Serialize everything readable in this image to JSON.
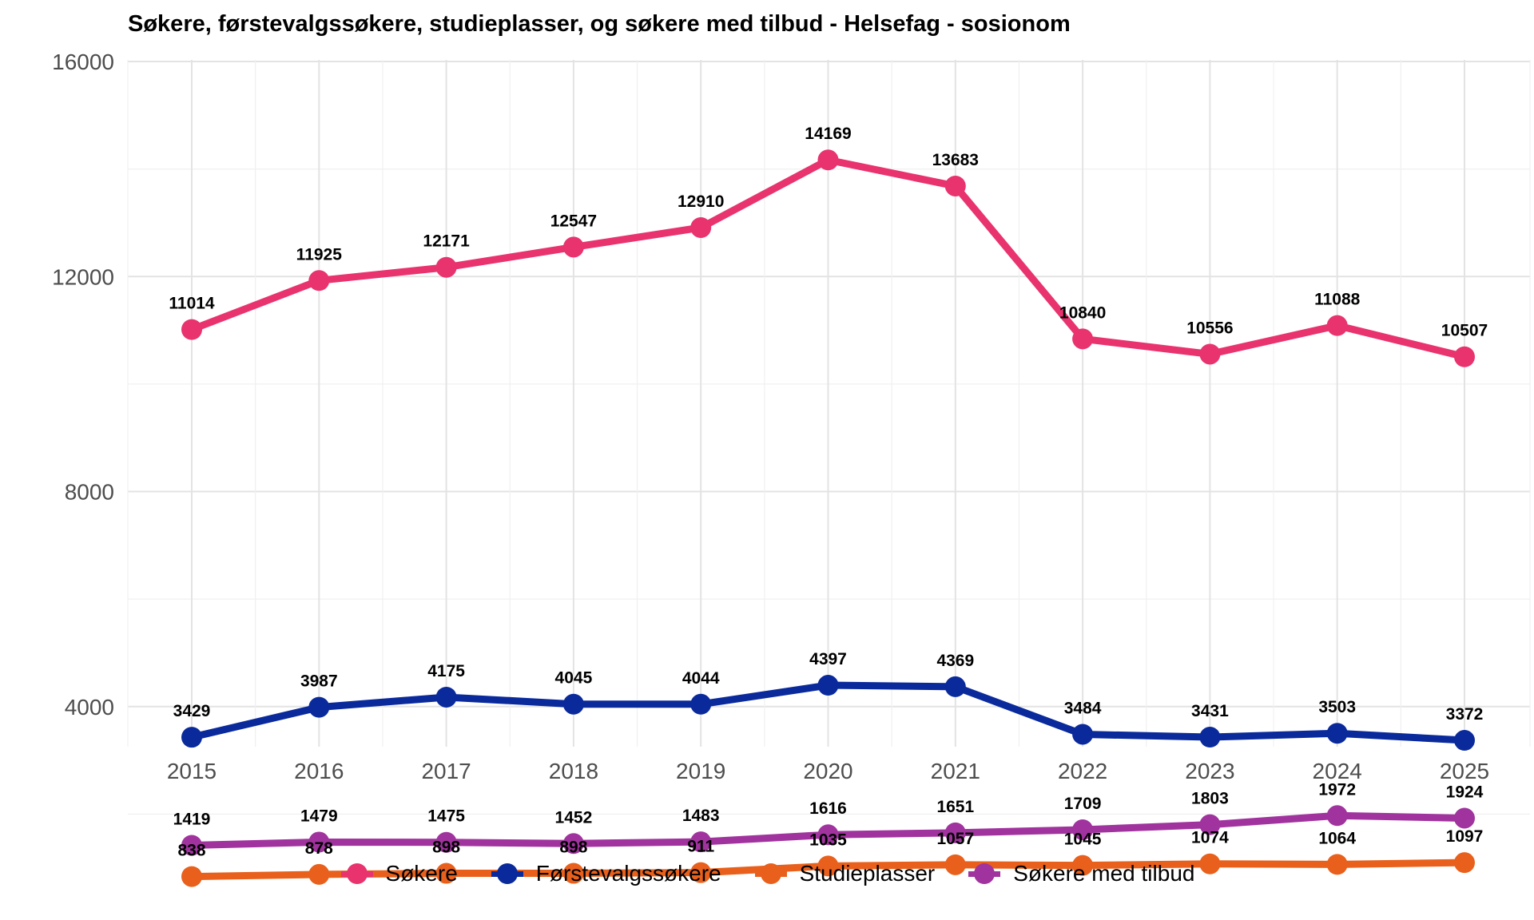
{
  "chart_data": {
    "type": "line",
    "title": "Søkere, førstevalgssøkere, studieplasser, og søkere med tilbud - Helsefag - sosionom",
    "xlabel": "",
    "ylabel": "",
    "x": [
      "2015",
      "2016",
      "2017",
      "2018",
      "2019",
      "2020",
      "2021",
      "2022",
      "2023",
      "2024",
      "2025"
    ],
    "ylim": [
      0,
      16000
    ],
    "yticks": [
      "4000",
      "8000",
      "12000",
      "16000"
    ],
    "grid": true,
    "legend_position": "bottom",
    "series": [
      {
        "name": "Søkere",
        "color": "#e8336f",
        "values": [
          11014,
          11925,
          12171,
          12547,
          12910,
          14169,
          13683,
          10840,
          10556,
          11088,
          10507
        ]
      },
      {
        "name": "Førstevalgssøkere",
        "color": "#0a2a9c",
        "values": [
          3429,
          3987,
          4175,
          4045,
          4044,
          4397,
          4369,
          3484,
          3431,
          3503,
          3372
        ]
      },
      {
        "name": "Studieplasser",
        "color": "#e8601c",
        "values": [
          838,
          878,
          898,
          898,
          911,
          1035,
          1057,
          1045,
          1074,
          1064,
          1097
        ]
      },
      {
        "name": "Søkere med tilbud",
        "color": "#a0339e",
        "values": [
          1419,
          1479,
          1475,
          1452,
          1483,
          1616,
          1651,
          1709,
          1803,
          1972,
          1924
        ]
      }
    ]
  }
}
